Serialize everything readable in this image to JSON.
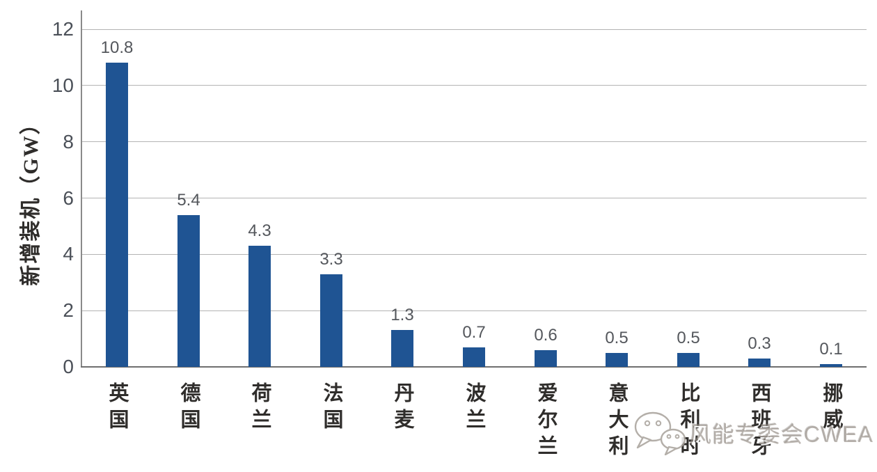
{
  "chart_data": {
    "type": "bar",
    "title": "",
    "xlabel": "",
    "ylabel": "新增装机（GW）",
    "categories": [
      "英国",
      "德国",
      "荷兰",
      "法国",
      "丹麦",
      "波兰",
      "爱尔兰",
      "意大利",
      "比利时",
      "西班牙",
      "挪威"
    ],
    "values": [
      10.8,
      5.4,
      4.3,
      3.3,
      1.3,
      0.7,
      0.6,
      0.5,
      0.5,
      0.3,
      0.1
    ],
    "value_labels": [
      "10.8",
      "5.4",
      "4.3",
      "3.3",
      "1.3",
      "0.7",
      "0.6",
      "0.5",
      "0.5",
      "0.3",
      "0.1"
    ],
    "yticks": [
      0,
      2,
      4,
      6,
      8,
      10,
      12
    ],
    "ylim": [
      0,
      12
    ],
    "grid": true,
    "legend": false,
    "bar_color": "#1f5493",
    "gridline_color": "#b3b3b3",
    "axis_color": "#6f6f6f",
    "tick_label_color": "#4b5058",
    "value_label_color": "#54575c",
    "category_label_color": "#2f2d2b"
  },
  "watermark": {
    "icon": "wechat-icon",
    "text": "风能专委会CWEA"
  }
}
